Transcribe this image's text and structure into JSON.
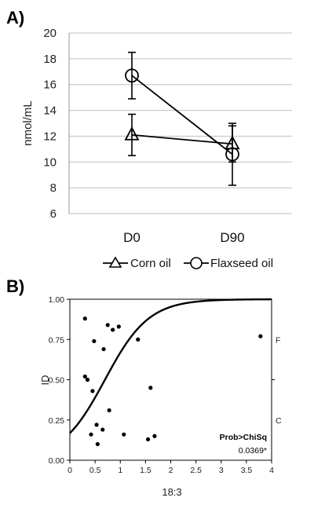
{
  "chart_data": [
    {
      "panel": "A)",
      "type": "line",
      "categories": [
        "D0",
        "D90"
      ],
      "ylabel": "nmol/mL",
      "ylim": [
        6,
        20
      ],
      "yticks": [
        6,
        8,
        10,
        12,
        14,
        16,
        18,
        20
      ],
      "grid": "horizontal",
      "legend_position": "bottom",
      "series": [
        {
          "name": "Corn oil",
          "marker": "triangle",
          "values": [
            12.1,
            11.4
          ],
          "error": [
            1.6,
            1.4
          ]
        },
        {
          "name": "Flaxseed oil",
          "marker": "circle",
          "values": [
            16.7,
            10.6
          ],
          "error": [
            1.8,
            2.4
          ]
        }
      ]
    },
    {
      "panel": "B)",
      "type": "scatter",
      "xlabel": "18:3",
      "ylabel": "ID",
      "xlim": [
        0,
        4
      ],
      "ylim": [
        0,
        1
      ],
      "xticks": [
        "0",
        "0.5",
        "1",
        "1.5",
        "2",
        "2.5",
        "3",
        "3.5",
        "4"
      ],
      "xtick_values": [
        0,
        0.5,
        1,
        1.5,
        2,
        2.5,
        3,
        3.5,
        4
      ],
      "yticks": [
        "0.00",
        "0.25",
        "0.50",
        "0.75",
        "1.00"
      ],
      "ytick_values": [
        0,
        0.25,
        0.5,
        0.75,
        1
      ],
      "right_labels": [
        {
          "label": "F",
          "y": 0.75
        },
        {
          "label": "C",
          "y": 0.25
        }
      ],
      "right_tick_y": 0.5,
      "points": [
        [
          0.3,
          0.88
        ],
        [
          0.3,
          0.52
        ],
        [
          0.35,
          0.5
        ],
        [
          0.42,
          0.16
        ],
        [
          0.45,
          0.43
        ],
        [
          0.48,
          0.74
        ],
        [
          0.53,
          0.22
        ],
        [
          0.55,
          0.1
        ],
        [
          0.65,
          0.19
        ],
        [
          0.67,
          0.69
        ],
        [
          0.75,
          0.84
        ],
        [
          0.78,
          0.31
        ],
        [
          0.85,
          0.81
        ],
        [
          0.97,
          0.83
        ],
        [
          1.07,
          0.16
        ],
        [
          1.35,
          0.75
        ],
        [
          1.55,
          0.13
        ],
        [
          1.6,
          0.45
        ],
        [
          1.68,
          0.15
        ],
        [
          3.78,
          0.77
        ]
      ],
      "curve": {
        "type": "logistic",
        "intercept": -1.6,
        "slope": 2.3
      },
      "annotation": {
        "title": "Prob>ChiSq",
        "value": "0.0369*"
      }
    }
  ]
}
